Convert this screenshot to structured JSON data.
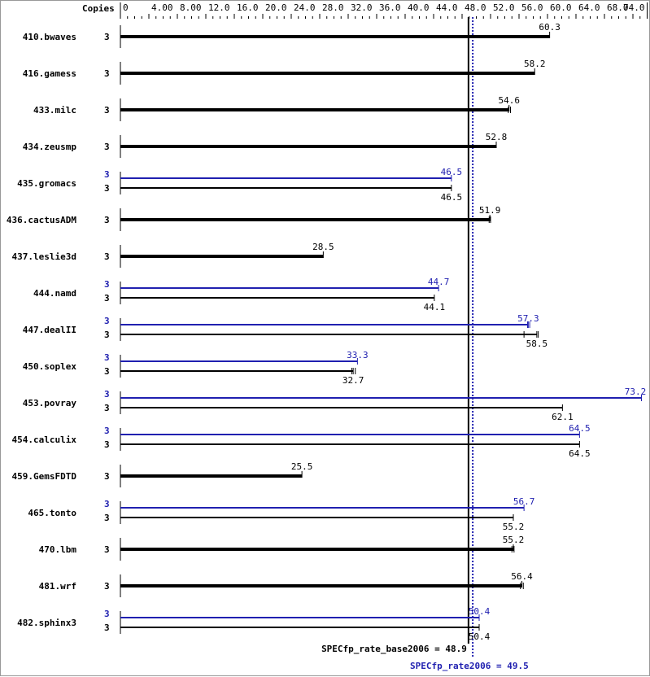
{
  "chart_data": {
    "type": "bar",
    "orientation": "horizontal",
    "xlim": [
      0,
      74
    ],
    "header_label": "Copies",
    "tick_labels": [
      "0",
      "4.00",
      "8.00",
      "12.0",
      "16.0",
      "20.0",
      "24.0",
      "28.0",
      "32.0",
      "36.0",
      "40.0",
      "44.0",
      "48.0",
      "52.0",
      "56.0",
      "60.0",
      "64.0",
      "68.0",
      "74.0"
    ],
    "tick_values": [
      0,
      4,
      8,
      12,
      16,
      20,
      24,
      28,
      32,
      36,
      40,
      44,
      48,
      52,
      56,
      60,
      64,
      68,
      74
    ],
    "colors": {
      "base": "#000000",
      "peak": "#2020b0"
    },
    "benchmarks": [
      {
        "name": "410.bwaves",
        "copies": "3",
        "base": 60.3,
        "base_label": "60.3"
      },
      {
        "name": "416.gamess",
        "copies": "3",
        "base": 58.2,
        "base_label": "58.2"
      },
      {
        "name": "433.milc",
        "copies": "3",
        "base": 54.6,
        "base_label": "54.6",
        "base_range": [
          54.5,
          54.8
        ]
      },
      {
        "name": "434.zeusmp",
        "copies": "3",
        "base": 52.8,
        "base_label": "52.8"
      },
      {
        "name": "435.gromacs",
        "copies": "3",
        "base": 46.5,
        "base_label": "46.5",
        "peak": 46.5,
        "peak_label": "46.5",
        "peak_copies": "3"
      },
      {
        "name": "436.cactusADM",
        "copies": "3",
        "base": 51.9,
        "base_label": "51.9",
        "base_range": [
          51.8,
          52.0
        ]
      },
      {
        "name": "437.leslie3d",
        "copies": "3",
        "base": 28.5,
        "base_label": "28.5"
      },
      {
        "name": "444.namd",
        "copies": "3",
        "base": 44.1,
        "base_label": "44.1",
        "peak": 44.7,
        "peak_label": "44.7",
        "peak_copies": "3"
      },
      {
        "name": "447.dealII",
        "copies": "3",
        "base": 58.5,
        "base_label": "58.5",
        "base_range": [
          56.7,
          58.7
        ],
        "peak": 57.3,
        "peak_label": "57.3",
        "peak_copies": "3",
        "peak_range": [
          57.2,
          57.5
        ]
      },
      {
        "name": "450.soplex",
        "copies": "3",
        "base": 32.7,
        "base_label": "32.7",
        "base_range": [
          32.5,
          33.0
        ],
        "peak": 33.3,
        "peak_label": "33.3",
        "peak_copies": "3"
      },
      {
        "name": "453.povray",
        "copies": "3",
        "base": 62.1,
        "base_label": "62.1",
        "peak": 73.2,
        "peak_label": "73.2",
        "peak_copies": "3"
      },
      {
        "name": "454.calculix",
        "copies": "3",
        "base": 64.5,
        "base_label": "64.5",
        "peak": 64.5,
        "peak_label": "64.5",
        "peak_copies": "3"
      },
      {
        "name": "459.GemsFDTD",
        "copies": "3",
        "base": 25.5,
        "base_label": "25.5"
      },
      {
        "name": "465.tonto",
        "copies": "3",
        "base": 55.2,
        "base_label": "55.2",
        "peak": 56.7,
        "peak_label": "56.7",
        "peak_copies": "3"
      },
      {
        "name": "470.lbm",
        "copies": "3",
        "base": 55.2,
        "base_label": "55.2",
        "base_range": [
          55.0,
          55.3
        ]
      },
      {
        "name": "481.wrf",
        "copies": "3",
        "base": 56.4,
        "base_label": "56.4",
        "base_range": [
          56.2,
          56.6
        ]
      },
      {
        "name": "482.sphinx3",
        "copies": "3",
        "base": 50.4,
        "base_label": "50.4",
        "peak": 50.4,
        "peak_label": "50.4",
        "peak_copies": "3"
      }
    ],
    "base_metric": {
      "label": "SPECfp_rate_base2006 = 48.9",
      "value": 48.9
    },
    "peak_metric": {
      "label": "SPECfp_rate2006 = 49.5",
      "value": 49.5
    }
  }
}
